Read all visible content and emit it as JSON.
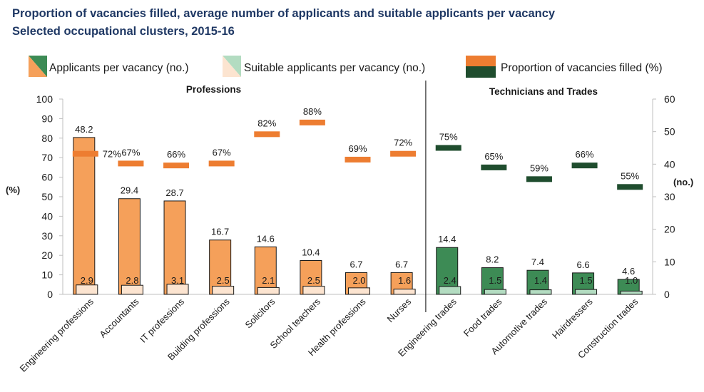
{
  "title": "Proportion of vacancies filled, average number of applicants and suitable applicants per vacancy",
  "subtitle": "Selected occupational clusters, 2015-16",
  "colors": {
    "prof_applicants": "#f5a05a",
    "prof_suitable": "#fce4d0",
    "prof_filled": "#ed7d31",
    "trade_applicants": "#3d8b55",
    "trade_suitable": "#b3dcc1",
    "trade_filled": "#1f4d2e",
    "outline": "#1a1a1a",
    "title": "#1f3864"
  },
  "chart_data": {
    "type": "bar",
    "title": "Proportion of vacancies filled, average number of applicants and suitable applicants per vacancy",
    "subtitle": "Selected occupational clusters, 2015-16",
    "categories": [
      "Engineering professions",
      "Accountants",
      "IT professions",
      "Building professions",
      "Solicitors",
      "School teachers",
      "Health professions",
      "Nurses",
      "Engineering trades",
      "Food trades",
      "Automotive trades",
      "Hairdressers",
      "Construction trades"
    ],
    "groups": [
      {
        "name": "Professions",
        "start": 0,
        "end": 7
      },
      {
        "name": "Technicians and Trades",
        "start": 8,
        "end": 12
      }
    ],
    "series": [
      {
        "name": "Applicants per vacancy (no.)",
        "axis": "right",
        "values": [
          48.2,
          29.4,
          28.7,
          16.7,
          14.6,
          10.4,
          6.7,
          6.7,
          14.4,
          8.2,
          7.4,
          6.6,
          4.6
        ],
        "labels": [
          "48.2",
          "29.4",
          "28.7",
          "16.7",
          "14.6",
          "10.4",
          "6.7",
          "6.7",
          "14.4",
          "8.2",
          "7.4",
          "6.6",
          "4.6"
        ]
      },
      {
        "name": "Suitable applicants per vacancy (no.)",
        "axis": "right",
        "values": [
          2.9,
          2.8,
          3.1,
          2.5,
          2.1,
          2.5,
          2.0,
          1.6,
          2.4,
          1.5,
          1.4,
          1.5,
          1.0
        ],
        "labels": [
          "2.9",
          "2.8",
          "3.1",
          "2.5",
          "2.1",
          "2.5",
          "2.0",
          "1.6",
          "2.4",
          "1.5",
          "1.4",
          "1.5",
          "1.0"
        ]
      },
      {
        "name": "Proportion of vacancies filled (%)",
        "axis": "left",
        "values": [
          72,
          67,
          66,
          67,
          82,
          88,
          69,
          72,
          75,
          65,
          59,
          66,
          55
        ],
        "labels": [
          "72%",
          "67%",
          "66%",
          "67%",
          "82%",
          "88%",
          "69%",
          "72%",
          "75%",
          "65%",
          "59%",
          "66%",
          "55%"
        ]
      }
    ],
    "y_left": {
      "label": "(%)",
      "min": 0,
      "max": 100,
      "ticks": [
        "0",
        "10",
        "20",
        "30",
        "40",
        "50",
        "60",
        "70",
        "80",
        "90",
        "100"
      ]
    },
    "y_right": {
      "label": "(no.)",
      "min": 0,
      "max": 60,
      "ticks": [
        "0",
        "10",
        "20",
        "30",
        "40",
        "50",
        "60"
      ]
    },
    "legend": {
      "position": "top"
    }
  }
}
